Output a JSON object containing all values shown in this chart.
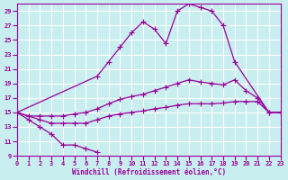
{
  "xlabel": "Windchill (Refroidissement éolien,°C)",
  "background_color": "#c8eef0",
  "grid_color": "#ffffff",
  "line_color": "#990099",
  "xlim": [
    0,
    23
  ],
  "ylim": [
    9,
    30
  ],
  "xticks": [
    0,
    1,
    2,
    3,
    4,
    5,
    6,
    7,
    8,
    9,
    10,
    11,
    12,
    13,
    14,
    15,
    16,
    17,
    18,
    19,
    20,
    21,
    22,
    23
  ],
  "yticks": [
    9,
    11,
    13,
    15,
    17,
    19,
    21,
    23,
    25,
    27,
    29
  ],
  "curve1_x": [
    0,
    1,
    2,
    3,
    4,
    5,
    6,
    7
  ],
  "curve1_y": [
    15,
    14,
    13,
    12,
    10.5,
    10.5,
    10,
    9.5
  ],
  "curve2_x": [
    0,
    1,
    2,
    3,
    4,
    5,
    6,
    7,
    8,
    9,
    10,
    11,
    12,
    13,
    14,
    15,
    16,
    17,
    18,
    19,
    20,
    21,
    22,
    23
  ],
  "curve2_y": [
    15,
    14.5,
    14.0,
    13.5,
    13.5,
    13.5,
    13.5,
    14.0,
    14.5,
    14.8,
    15.0,
    15.2,
    15.5,
    15.7,
    16.0,
    16.2,
    16.2,
    16.2,
    16.3,
    16.5,
    16.5,
    16.5,
    15.0,
    15.0
  ],
  "curve3_x": [
    0,
    1,
    2,
    3,
    4,
    5,
    6,
    7,
    8,
    9,
    10,
    11,
    12,
    13,
    14,
    15,
    16,
    17,
    18,
    19,
    20,
    21,
    22,
    23
  ],
  "curve3_y": [
    15,
    14.5,
    14.5,
    14.5,
    14.5,
    14.8,
    15.0,
    15.5,
    16.2,
    16.8,
    17.2,
    17.5,
    18.0,
    18.5,
    19.0,
    19.5,
    19.2,
    19.0,
    18.8,
    19.5,
    18.0,
    17.0,
    15.0,
    15.0
  ],
  "curve4_x": [
    0,
    7,
    8,
    9,
    10,
    11,
    12,
    13,
    14,
    15,
    16,
    17,
    18,
    19,
    22,
    23
  ],
  "curve4_y": [
    15,
    20,
    22,
    24,
    26,
    27.5,
    26.5,
    24.5,
    29,
    30,
    29.5,
    29,
    27,
    22,
    15,
    15
  ],
  "marker": "+",
  "markersize": 4,
  "linewidth": 0.9
}
